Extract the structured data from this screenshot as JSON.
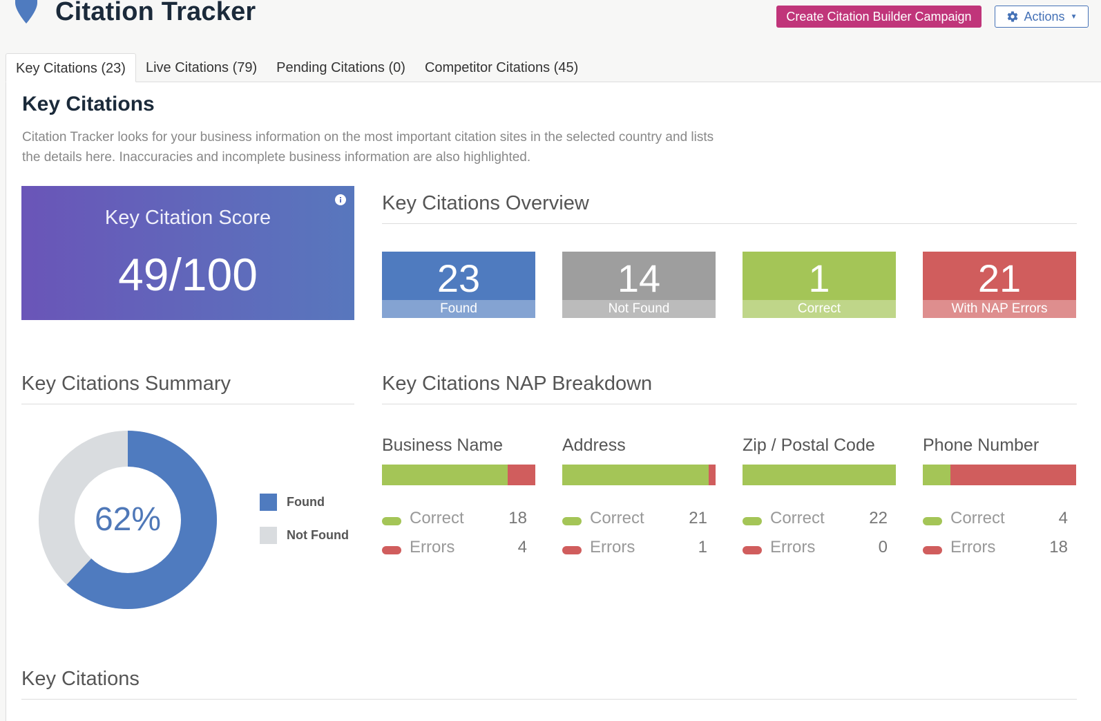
{
  "header": {
    "title": "Citation Tracker",
    "campaign_button": "Create Citation Builder Campaign",
    "actions_button": "Actions"
  },
  "tabs": [
    {
      "label": "Key Citations (23)",
      "active": true
    },
    {
      "label": "Live Citations (79)",
      "active": false
    },
    {
      "label": "Pending Citations (0)",
      "active": false
    },
    {
      "label": "Competitor Citations (45)",
      "active": false
    }
  ],
  "page": {
    "heading": "Key Citations",
    "description": "Citation Tracker looks for your business information on the most important citation sites in the selected country and lists the details here. Inaccuracies and incomplete business information are also highlighted."
  },
  "score": {
    "label": "Key Citation Score",
    "value": "49/100"
  },
  "overview": {
    "title": "Key Citations Overview",
    "cards": [
      {
        "value": "23",
        "label": "Found",
        "color": "#4f7bbf"
      },
      {
        "value": "14",
        "label": "Not Found",
        "color": "#9e9e9e"
      },
      {
        "value": "1",
        "label": "Correct",
        "color": "#a4c557"
      },
      {
        "value": "21",
        "label": "With NAP Errors",
        "color": "#d05d5d"
      }
    ]
  },
  "summary": {
    "title": "Key Citations Summary",
    "percent_label": "62%",
    "found_fraction": 0.62,
    "legend": [
      {
        "label": "Found",
        "color": "#4f7bbf"
      },
      {
        "label": "Not Found",
        "color": "#d9dcdf"
      }
    ]
  },
  "nap": {
    "title": "Key Citations NAP Breakdown",
    "correct_label": "Correct",
    "errors_label": "Errors",
    "correct_color": "#a4c557",
    "error_color": "#d05d5d",
    "columns": [
      {
        "name": "Business Name",
        "correct": "18",
        "errors": "4"
      },
      {
        "name": "Address",
        "correct": "21",
        "errors": "1"
      },
      {
        "name": "Zip / Postal Code",
        "correct": "22",
        "errors": "0"
      },
      {
        "name": "Phone Number",
        "correct": "4",
        "errors": "18"
      }
    ]
  },
  "list": {
    "title": "Key Citations"
  }
}
